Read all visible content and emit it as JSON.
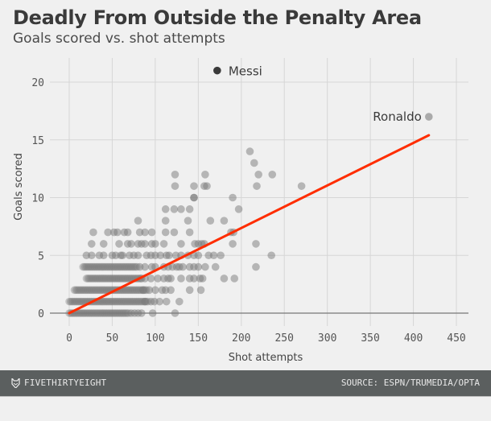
{
  "header": {
    "title": "Deadly From Outside the Penalty Area",
    "subtitle": "Goals scored vs. shot attempts"
  },
  "footer": {
    "brand": "FIVETHIRTYEIGHT",
    "brand_icon": "fox-icon",
    "source": "SOURCE: ESPN/TRUMEDIA/OPTA"
  },
  "colors": {
    "point": "#7a7a7a",
    "highlight": "#3a3a3a",
    "trend": "#ff2d00",
    "grid": "#d6d6d6",
    "footer_bg": "#5b5f5f"
  },
  "chart_data": {
    "type": "scatter",
    "title": "Deadly From Outside the Penalty Area",
    "subtitle": "Goals scored vs. shot attempts",
    "xlabel": "Shot attempts",
    "ylabel": "Goals scored",
    "xlim": [
      0,
      460
    ],
    "ylim": [
      0,
      21
    ],
    "xticks": [
      0,
      50,
      100,
      150,
      200,
      250,
      300,
      350,
      400,
      450
    ],
    "yticks": [
      0,
      5,
      10,
      15,
      20
    ],
    "grid": true,
    "trendline": {
      "x": [
        0,
        418
      ],
      "y": [
        0,
        15.4
      ]
    },
    "annotations": [
      {
        "label": "Messi",
        "x": 172,
        "y": 21,
        "highlight": true
      },
      {
        "label": "Ronaldo",
        "x": 418,
        "y": 17,
        "highlight": false
      }
    ],
    "dense_ranges": [
      {
        "y": 0,
        "x_from": 0,
        "x_to": 70
      },
      {
        "y": 1,
        "x_from": 0,
        "x_to": 92
      },
      {
        "y": 2,
        "x_from": 6,
        "x_to": 90
      },
      {
        "y": 3,
        "x_from": 20,
        "x_to": 84
      },
      {
        "y": 4,
        "x_from": 16,
        "x_to": 80
      }
    ],
    "points": [
      [
        72,
        0
      ],
      [
        76,
        0
      ],
      [
        80,
        0
      ],
      [
        84,
        0
      ],
      [
        97,
        0
      ],
      [
        123,
        0
      ],
      [
        88,
        1
      ],
      [
        95,
        1
      ],
      [
        99,
        1
      ],
      [
        105,
        1
      ],
      [
        113,
        1
      ],
      [
        128,
        1
      ],
      [
        86,
        2
      ],
      [
        93,
        2
      ],
      [
        100,
        2
      ],
      [
        108,
        2
      ],
      [
        112,
        2
      ],
      [
        118,
        2
      ],
      [
        140,
        2
      ],
      [
        153,
        2
      ],
      [
        84,
        3
      ],
      [
        88,
        3
      ],
      [
        95,
        3
      ],
      [
        103,
        3
      ],
      [
        110,
        3
      ],
      [
        115,
        3
      ],
      [
        118,
        3
      ],
      [
        130,
        3
      ],
      [
        140,
        3
      ],
      [
        145,
        3
      ],
      [
        152,
        3
      ],
      [
        155,
        3
      ],
      [
        180,
        3
      ],
      [
        192,
        3
      ],
      [
        82,
        4
      ],
      [
        88,
        4
      ],
      [
        96,
        4
      ],
      [
        100,
        4
      ],
      [
        110,
        4
      ],
      [
        115,
        4
      ],
      [
        120,
        4
      ],
      [
        125,
        4
      ],
      [
        128,
        4
      ],
      [
        132,
        4
      ],
      [
        140,
        4
      ],
      [
        145,
        4
      ],
      [
        150,
        4
      ],
      [
        158,
        4
      ],
      [
        170,
        4
      ],
      [
        217,
        4
      ],
      [
        20,
        5
      ],
      [
        26,
        5
      ],
      [
        35,
        5
      ],
      [
        40,
        5
      ],
      [
        50,
        5
      ],
      [
        54,
        5
      ],
      [
        60,
        5
      ],
      [
        62,
        5
      ],
      [
        70,
        5
      ],
      [
        75,
        5
      ],
      [
        80,
        5
      ],
      [
        90,
        5
      ],
      [
        95,
        5
      ],
      [
        100,
        5
      ],
      [
        106,
        5
      ],
      [
        113,
        5
      ],
      [
        116,
        5
      ],
      [
        124,
        5
      ],
      [
        130,
        5
      ],
      [
        138,
        5
      ],
      [
        145,
        5
      ],
      [
        150,
        5
      ],
      [
        162,
        5
      ],
      [
        168,
        5
      ],
      [
        176,
        5
      ],
      [
        235,
        5
      ],
      [
        26,
        6
      ],
      [
        40,
        6
      ],
      [
        58,
        6
      ],
      [
        68,
        6
      ],
      [
        72,
        6
      ],
      [
        80,
        6
      ],
      [
        84,
        6
      ],
      [
        88,
        6
      ],
      [
        96,
        6
      ],
      [
        100,
        6
      ],
      [
        110,
        6
      ],
      [
        130,
        6
      ],
      [
        146,
        6
      ],
      [
        150,
        6
      ],
      [
        154,
        6
      ],
      [
        157,
        6
      ],
      [
        190,
        6
      ],
      [
        217,
        6
      ],
      [
        28,
        7
      ],
      [
        45,
        7
      ],
      [
        52,
        7
      ],
      [
        56,
        7
      ],
      [
        64,
        7
      ],
      [
        68,
        7
      ],
      [
        82,
        7
      ],
      [
        88,
        7
      ],
      [
        96,
        7
      ],
      [
        112,
        7
      ],
      [
        122,
        7
      ],
      [
        140,
        7
      ],
      [
        188,
        7
      ],
      [
        191,
        7
      ],
      [
        80,
        8
      ],
      [
        112,
        8
      ],
      [
        138,
        8
      ],
      [
        164,
        8
      ],
      [
        180,
        8
      ],
      [
        112,
        9
      ],
      [
        122,
        9
      ],
      [
        130,
        9
      ],
      [
        140,
        9
      ],
      [
        197,
        9
      ],
      [
        145,
        10
      ],
      [
        145,
        10
      ],
      [
        190,
        10
      ],
      [
        123,
        11
      ],
      [
        145,
        11
      ],
      [
        157,
        11
      ],
      [
        160,
        11
      ],
      [
        218,
        11
      ],
      [
        270,
        11
      ],
      [
        123,
        12
      ],
      [
        158,
        12
      ],
      [
        220,
        12
      ],
      [
        236,
        12
      ],
      [
        215,
        13
      ],
      [
        210,
        14
      ]
    ]
  }
}
